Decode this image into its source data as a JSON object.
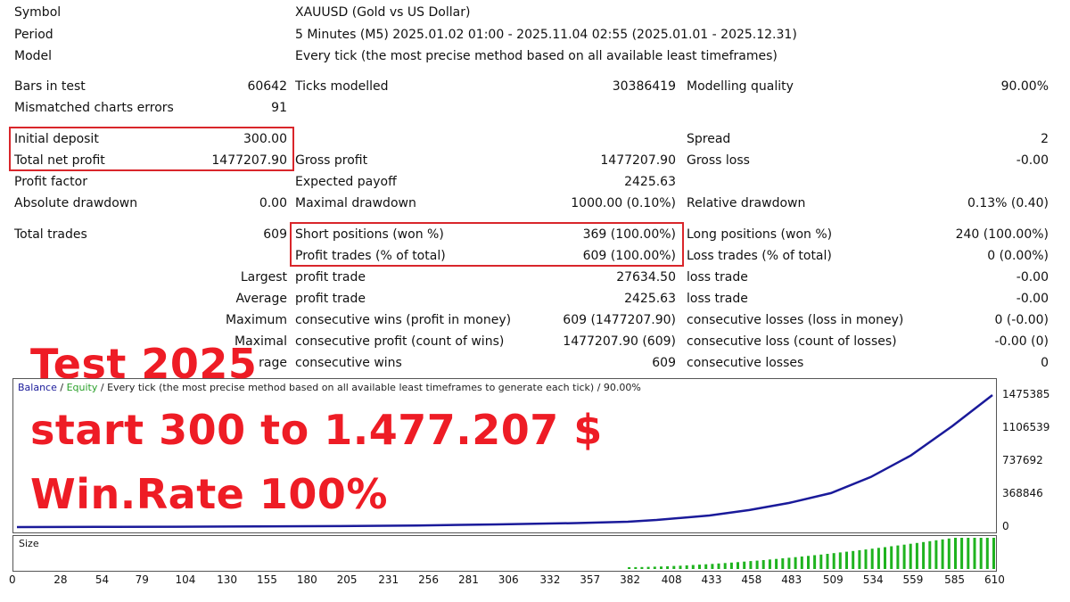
{
  "header": {
    "symbol_label": "Symbol",
    "symbol_value": "XAUUSD (Gold vs US Dollar)",
    "period_label": "Period",
    "period_value": "5 Minutes (M5) 2025.01.02 01:00 - 2025.11.04 02:55 (2025.01.01 - 2025.12.31)",
    "model_label": "Model",
    "model_value": "Every tick (the most precise method based on all available least timeframes)"
  },
  "stats": {
    "bars_label": "Bars in test",
    "bars_value": "60642",
    "ticks_label": "Ticks modelled",
    "ticks_value": "30386419",
    "quality_label": "Modelling quality",
    "quality_value": "90.00%",
    "mismatch_label": "Mismatched charts errors",
    "mismatch_value": "91",
    "deposit_label": "Initial deposit",
    "deposit_value": "300.00",
    "spread_label": "Spread",
    "spread_value": "2",
    "netprofit_label": "Total net profit",
    "netprofit_value": "1477207.90",
    "grossprofit_label": "Gross profit",
    "grossprofit_value": "1477207.90",
    "grossloss_label": "Gross loss",
    "grossloss_value": "-0.00",
    "pf_label": "Profit factor",
    "payoff_label": "Expected payoff",
    "payoff_value": "2425.63",
    "absdd_label": "Absolute drawdown",
    "absdd_value": "0.00",
    "maxdd_label": "Maximal drawdown",
    "maxdd_value": "1000.00 (0.10%)",
    "reldd_label": "Relative drawdown",
    "reldd_value": "0.13% (0.40)",
    "trades_label": "Total trades",
    "trades_value": "609",
    "short_label": "Short positions (won %)",
    "short_value": "369 (100.00%)",
    "long_label": "Long positions (won %)",
    "long_value": "240 (100.00%)",
    "pt_label": "Profit trades (% of total)",
    "pt_value": "609 (100.00%)",
    "lt_label": "Loss trades (% of total)",
    "lt_value": "0 (0.00%)",
    "largest_label": "Largest",
    "largest_pt_label": "profit trade",
    "largest_pt_value": "27634.50",
    "largest_lt_label": "loss trade",
    "largest_lt_value": "-0.00",
    "average_label": "Average",
    "average_pt_label": "profit trade",
    "average_pt_value": "2425.63",
    "average_lt_label": "loss trade",
    "average_lt_value": "-0.00",
    "maximum_label": "Maximum",
    "max_cw_label": "consecutive wins (profit in money)",
    "max_cw_value": "609 (1477207.90)",
    "max_cl_label": "consecutive losses (loss in money)",
    "max_cl_value": "0 (-0.00)",
    "maximal_label": "Maximal",
    "mxl_cp_label": "consecutive profit (count of wins)",
    "mxl_cp_value": "1477207.90 (609)",
    "mxl_cl_label": "consecutive loss (count of losses)",
    "mxl_cl_value": "-0.00 (0)",
    "avg2_label": "rage",
    "avg_cw_label": "consecutive wins",
    "avg_cw_value": "609",
    "avg_cl_label": "consecutive losses",
    "avg_cl_value": "0"
  },
  "overlay": {
    "line1": "Test 2025",
    "line2": "start 300 to 1.477.207 $",
    "line3": "Win.Rate 100%"
  },
  "chart_legend": {
    "balance": "Balance",
    "sep1": " / ",
    "equity": "Equity",
    "sep2": " / ",
    "rest": "Every tick (the most precise method based on all available least timeframes to generate each tick) / 90.00%"
  },
  "size_label": "Size",
  "colors": {
    "balance": "#1a1a9a",
    "equity": "#2aa02a",
    "size_bars": "#1fb31f",
    "highlight": "#d9262b",
    "overlay_text": "#ee1c25"
  },
  "chart_data": {
    "type": "line",
    "title": "",
    "series": [
      {
        "name": "Balance",
        "x": [
          0,
          50,
          100,
          150,
          200,
          250,
          300,
          350,
          382,
          400,
          433,
          458,
          483,
          509,
          534,
          559,
          585,
          610
        ],
        "values": [
          300,
          1500,
          3500,
          6500,
          11000,
          18000,
          30000,
          45000,
          60000,
          80000,
          130000,
          190000,
          270000,
          380000,
          560000,
          800000,
          1130000,
          1475385
        ]
      }
    ],
    "y_ticks": [
      "1475385",
      "1106539",
      "737692",
      "368846",
      "0"
    ],
    "ylim": [
      0,
      1475385
    ],
    "x_ticks": [
      "0",
      "28",
      "54",
      "79",
      "104",
      "130",
      "155",
      "180",
      "205",
      "231",
      "256",
      "281",
      "306",
      "332",
      "357",
      "382",
      "408",
      "433",
      "458",
      "483",
      "509",
      "534",
      "559",
      "585",
      "610"
    ],
    "xlim": [
      0,
      610
    ]
  }
}
